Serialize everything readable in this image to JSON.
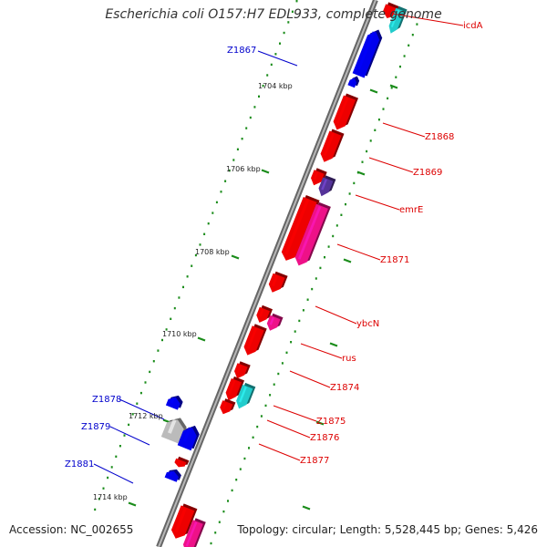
{
  "header": {
    "title": "Escherichia coli O157:H7 EDL933, complete genome"
  },
  "footer": {
    "accession": "Accession: NC_002655",
    "summary": "Topology: circular; Length: 5,528,445 bp; Genes: 5,426"
  },
  "colors": {
    "forward": "#ee0000",
    "reverse": "#0000ee",
    "rna": "#ee1188",
    "cyan": "#22cccc",
    "purple": "#553399",
    "gray": "#bbbbbb",
    "backbone": "#888888",
    "tick": "#1a8c1a"
  },
  "tick_labels": [
    "1704 kbp",
    "1706 kbp",
    "1708 kbp",
    "1710 kbp",
    "1712 kbp",
    "1714 kbp"
  ],
  "genes": [
    {
      "label": "icdA",
      "strand": "forward"
    },
    {
      "label": "Z1867",
      "strand": "reverse"
    },
    {
      "label": "Z1868",
      "strand": "forward"
    },
    {
      "label": "Z1869",
      "strand": "forward"
    },
    {
      "label": "emrE",
      "strand": "forward"
    },
    {
      "label": "Z1871",
      "strand": "forward"
    },
    {
      "label": "ybcN",
      "strand": "forward"
    },
    {
      "label": "rus",
      "strand": "forward"
    },
    {
      "label": "Z1874",
      "strand": "forward"
    },
    {
      "label": "Z1875",
      "strand": "forward"
    },
    {
      "label": "Z1876",
      "strand": "forward"
    },
    {
      "label": "Z1877",
      "strand": "forward"
    },
    {
      "label": "Z1878",
      "strand": "reverse"
    },
    {
      "label": "Z1879",
      "strand": "reverse"
    },
    {
      "label": "Z1881",
      "strand": "reverse"
    }
  ]
}
